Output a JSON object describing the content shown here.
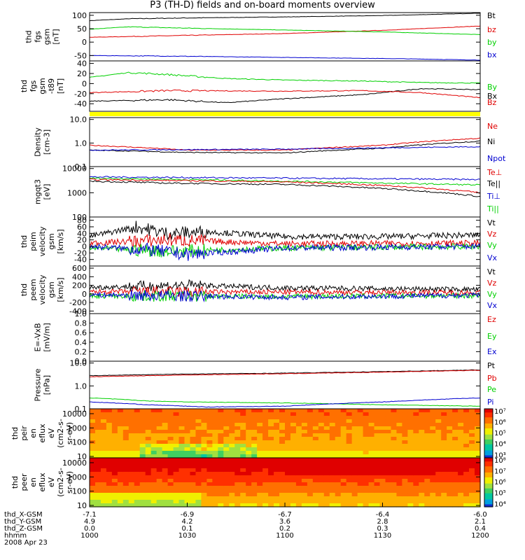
{
  "title": "P3 (TH-D) fields and on-board moments overview",
  "chart_data": [
    {
      "type": "line",
      "ylabel": [
        "thd",
        "fgs",
        "gsm",
        "[nT]"
      ],
      "ylim": [
        -70,
        110
      ],
      "yticks": [
        -50,
        0,
        50,
        100
      ],
      "legend": [
        {
          "name": "Bt",
          "color": "#000000"
        },
        {
          "name": "bz",
          "color": "#e00000"
        },
        {
          "name": "by",
          "color": "#00d000"
        },
        {
          "name": "bx",
          "color": "#0000d0"
        }
      ],
      "series": [
        {
          "name": "Bt",
          "color": "#000000",
          "x": [
            0,
            0.1,
            0.25,
            0.5,
            0.75,
            0.9,
            1
          ],
          "y": [
            80,
            87,
            90,
            94,
            99,
            104,
            108
          ]
        },
        {
          "name": "bz",
          "color": "#e00000",
          "x": [
            0,
            0.25,
            0.5,
            0.75,
            1
          ],
          "y": [
            18,
            25,
            32,
            44,
            60
          ]
        },
        {
          "name": "by",
          "color": "#00d000",
          "x": [
            0,
            0.1,
            0.25,
            0.5,
            0.75,
            1
          ],
          "y": [
            48,
            57,
            52,
            45,
            38,
            28
          ]
        },
        {
          "name": "bx",
          "color": "#0000d0",
          "x": [
            0,
            0.2,
            0.5,
            0.8,
            1
          ],
          "y": [
            -50,
            -52,
            -57,
            -62,
            -67
          ]
        }
      ]
    },
    {
      "type": "line",
      "ylabel": [
        "thd",
        "fgs",
        "gsm",
        "-t89",
        "[nT]"
      ],
      "ylim": [
        -55,
        45
      ],
      "yticks": [
        -40,
        -20,
        0,
        20,
        40
      ],
      "legend": [
        {
          "name": "By",
          "color": "#00d000"
        },
        {
          "name": "Bx",
          "color": "#000000"
        },
        {
          "name": "Bz",
          "color": "#e00000"
        }
      ],
      "series": [
        {
          "name": "By",
          "color": "#00d000",
          "x": [
            0,
            0.1,
            0.2,
            0.35,
            0.5,
            0.7,
            0.85,
            1
          ],
          "y": [
            12,
            22,
            18,
            10,
            7,
            5,
            2,
            1
          ]
        },
        {
          "name": "Bx",
          "color": "#000000",
          "x": [
            0,
            0.2,
            0.35,
            0.5,
            0.7,
            0.85,
            1
          ],
          "y": [
            -35,
            -32,
            -38,
            -30,
            -22,
            -10,
            -12
          ]
        },
        {
          "name": "Bz",
          "color": "#e00000",
          "x": [
            0,
            0.2,
            0.5,
            0.7,
            0.85,
            1
          ],
          "y": [
            -18,
            -14,
            -15,
            -14,
            -18,
            -28
          ]
        }
      ]
    },
    {
      "type": "line",
      "yscale": "log",
      "ylabel": [
        "Density",
        "[cm-3]"
      ],
      "ylim": [
        0.1,
        12
      ],
      "yticks": [
        0.1,
        1.0,
        10.0
      ],
      "ytick_labels": [
        "0.1",
        "1.0",
        "10.0"
      ],
      "legend": [
        {
          "name": "Ne",
          "color": "#e00000"
        },
        {
          "name": "Ni",
          "color": "#000000"
        },
        {
          "name": "Npot",
          "color": "#0000d0"
        }
      ],
      "series": [
        {
          "name": "Ne",
          "color": "#e00000",
          "x": [
            0,
            0.25,
            0.5,
            0.75,
            1
          ],
          "y": [
            0.8,
            0.5,
            0.5,
            0.8,
            1.6
          ]
        },
        {
          "name": "Ni",
          "color": "#000000",
          "x": [
            0,
            0.25,
            0.5,
            0.75,
            1
          ],
          "y": [
            0.5,
            0.4,
            0.38,
            0.6,
            1.2
          ]
        },
        {
          "name": "Npot",
          "color": "#0000d0",
          "x": [
            0,
            0.5,
            1
          ],
          "y": [
            0.5,
            0.55,
            0.7
          ]
        }
      ]
    },
    {
      "type": "line",
      "yscale": "log",
      "ylabel": [
        "mgqt3",
        "[eV]"
      ],
      "ylim": [
        100,
        12000
      ],
      "yticks": [
        100,
        1000,
        10000
      ],
      "ytick_labels": [
        "100",
        "1000",
        "10000"
      ],
      "legend": [
        {
          "name": "Te⊥",
          "color": "#e00000"
        },
        {
          "name": "Te||",
          "color": "#000000"
        },
        {
          "name": "Ti⊥",
          "color": "#0000d0"
        },
        {
          "name": "Ti||",
          "color": "#00d000"
        }
      ],
      "series": [
        {
          "name": "Ti⊥",
          "color": "#0000d0",
          "x": [
            0,
            0.5,
            1
          ],
          "y": [
            4500,
            4000,
            3500
          ]
        },
        {
          "name": "Ti||",
          "color": "#00d000",
          "x": [
            0,
            0.5,
            0.75,
            1
          ],
          "y": [
            4000,
            3000,
            2500,
            2100
          ]
        },
        {
          "name": "Te⊥",
          "color": "#e00000",
          "x": [
            0,
            0.5,
            0.75,
            1
          ],
          "y": [
            3500,
            2800,
            2000,
            1000
          ]
        },
        {
          "name": "Te||",
          "color": "#000000",
          "x": [
            0,
            0.2,
            0.5,
            0.75,
            1
          ],
          "y": [
            3000,
            2500,
            2200,
            1500,
            700
          ]
        }
      ]
    },
    {
      "type": "line",
      "ylabel": [
        "thd",
        "peim",
        "velocity",
        "gsm",
        "[km/s]"
      ],
      "ylim": [
        -60,
        90
      ],
      "yticks": [
        -40,
        -20,
        0,
        20,
        40,
        60,
        80
      ],
      "legend": [
        {
          "name": "Vt",
          "color": "#000000"
        },
        {
          "name": "Vz",
          "color": "#e00000"
        },
        {
          "name": "Vy",
          "color": "#00d000"
        },
        {
          "name": "Vx",
          "color": "#0000d0"
        }
      ],
      "series": [
        {
          "name": "Vt",
          "color": "#000000",
          "x": [
            0,
            0.12,
            0.2,
            0.3,
            0.5,
            0.75,
            1
          ],
          "y": [
            30,
            60,
            40,
            45,
            30,
            30,
            35
          ]
        },
        {
          "name": "Vz",
          "color": "#e00000",
          "x": [
            0,
            0.2,
            0.5,
            1
          ],
          "y": [
            10,
            20,
            8,
            10
          ]
        },
        {
          "name": "Vy",
          "color": "#00d000",
          "x": [
            0,
            0.2,
            0.5,
            1
          ],
          "y": [
            -5,
            -15,
            -5,
            0
          ]
        },
        {
          "name": "Vx",
          "color": "#0000d0",
          "x": [
            0,
            0.15,
            0.25,
            0.5,
            1
          ],
          "y": [
            0,
            -10,
            -25,
            -5,
            0
          ]
        }
      ]
    },
    {
      "type": "line",
      "ylabel": [
        "thd",
        "peem",
        "velocity",
        "gsm",
        "[km/s]"
      ],
      "ylim": [
        -460,
        650
      ],
      "yticks": [
        -400,
        -200,
        0,
        200,
        400,
        600
      ],
      "legend": [
        {
          "name": "Vt",
          "color": "#000000"
        },
        {
          "name": "Vz",
          "color": "#e00000"
        },
        {
          "name": "Vy",
          "color": "#00d000"
        },
        {
          "name": "Vx",
          "color": "#0000d0"
        }
      ],
      "series": [
        {
          "name": "Vt",
          "color": "#000000",
          "x": [
            0,
            0.25,
            0.5,
            1
          ],
          "y": [
            150,
            200,
            140,
            100
          ]
        },
        {
          "name": "Vz",
          "color": "#e00000",
          "x": [
            0,
            0.5,
            1
          ],
          "y": [
            50,
            40,
            30
          ]
        },
        {
          "name": "Vy",
          "color": "#00d000",
          "x": [
            0,
            0.5,
            1
          ],
          "y": [
            -50,
            -60,
            -40
          ]
        },
        {
          "name": "Vx",
          "color": "#0000d0",
          "x": [
            0,
            0.5,
            1
          ],
          "y": [
            -20,
            -80,
            -30
          ]
        }
      ]
    },
    {
      "type": "line",
      "ylabel": [
        "E=-VxB",
        "[mV/m]"
      ],
      "ylim": [
        0,
        1.0
      ],
      "yticks": [
        0,
        0.2,
        0.4,
        0.6,
        0.8,
        1.0
      ],
      "ytick_labels": [
        "0.0",
        "0.2",
        "0.4",
        "0.6",
        "0.8",
        "1.0"
      ],
      "legend": [
        {
          "name": "Ez",
          "color": "#e00000"
        },
        {
          "name": "Ey",
          "color": "#00d000"
        },
        {
          "name": "Ex",
          "color": "#0000d0"
        }
      ],
      "series": []
    },
    {
      "type": "line",
      "yscale": "log",
      "ylabel": [
        "Pressure",
        "[nPa]"
      ],
      "ylim": [
        0.1,
        12
      ],
      "yticks": [
        0.1,
        1.0,
        10.0
      ],
      "ytick_labels": [
        "0.1",
        "1.0",
        "10.0"
      ],
      "legend": [
        {
          "name": "Pt",
          "color": "#000000"
        },
        {
          "name": "Pb",
          "color": "#e00000"
        },
        {
          "name": "Pe",
          "color": "#00d000"
        },
        {
          "name": "Pi",
          "color": "#0000d0"
        }
      ],
      "series": [
        {
          "name": "Pt",
          "color": "#000000",
          "x": [
            0,
            0.25,
            0.5,
            0.75,
            1
          ],
          "y": [
            2.8,
            3.3,
            3.6,
            4.2,
            5.0
          ]
        },
        {
          "name": "Pb",
          "color": "#e00000",
          "x": [
            0,
            0.25,
            0.5,
            0.75,
            1
          ],
          "y": [
            2.5,
            3.0,
            3.4,
            4.0,
            4.8
          ]
        },
        {
          "name": "Pe",
          "color": "#00d000",
          "x": [
            0,
            0.15,
            0.25,
            0.5,
            0.75,
            1
          ],
          "y": [
            0.3,
            0.22,
            0.2,
            0.18,
            0.15,
            0.13
          ]
        },
        {
          "name": "Pi",
          "color": "#0000d0",
          "x": [
            0,
            0.15,
            0.3,
            0.5,
            0.75,
            1
          ],
          "y": [
            0.2,
            0.15,
            0.12,
            0.13,
            0.2,
            0.3
          ]
        }
      ]
    },
    {
      "type": "heatmap",
      "yscale": "log",
      "ylabel": [
        "thd",
        "peir",
        "en",
        "eflux",
        "eV",
        "(cm2-s-",
        "sr-eV)"
      ],
      "ylim": [
        8,
        22000
      ],
      "yticks": [
        10,
        100,
        1000,
        10000
      ],
      "ytick_labels": [
        "10",
        "100",
        "1000",
        "10000"
      ],
      "colorbar": {
        "min": 500,
        "max": 15000000.0,
        "ticks": [
          "10³",
          "10⁴",
          "10⁵",
          "10⁶",
          "10⁷"
        ],
        "tick_values": [
          1000.0,
          10000.0,
          100000.0,
          1000000.0,
          10000000.0
        ]
      }
    },
    {
      "type": "heatmap",
      "yscale": "log",
      "ylabel": [
        "thd",
        "peer",
        "en",
        "eflux",
        "eV",
        "(cm2-s-",
        "sr-eV)"
      ],
      "ylim": [
        8,
        22000
      ],
      "yticks": [
        10,
        100,
        1000,
        10000
      ],
      "ytick_labels": [
        "10",
        "100",
        "1000",
        "10000"
      ],
      "colorbar": {
        "min": 5000,
        "max": 150000000.0,
        "ticks": [
          "10⁴",
          "10⁵",
          "10⁶",
          "10⁷",
          "10⁸"
        ],
        "tick_values": [
          10000.0,
          100000.0,
          1000000.0,
          10000000.0,
          100000000.0
        ]
      }
    }
  ],
  "footer": {
    "row_labels": [
      "thd_X-GSM",
      "thd_Y-GSM",
      "thd_Z-GSM",
      "hhmm"
    ],
    "columns": [
      [
        "-7.1",
        "4.9",
        "0.0",
        "1000"
      ],
      [
        "-6.9",
        "4.2",
        "0.1",
        "1030"
      ],
      [
        "-6.7",
        "3.6",
        "0.2",
        "1100"
      ],
      [
        "-6.4",
        "2.8",
        "0.3",
        "1130"
      ],
      [
        "-6.0",
        "2.1",
        "0.4",
        "1200"
      ]
    ],
    "date": "2008 Apr 23"
  },
  "spacer_color": "#ffff00"
}
